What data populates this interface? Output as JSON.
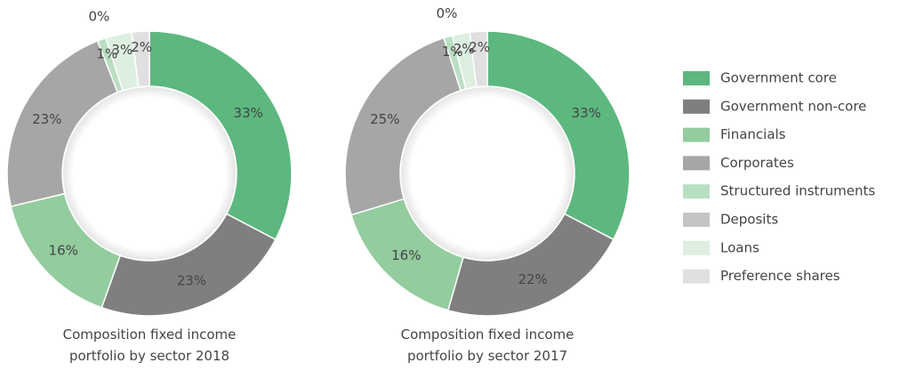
{
  "chart_data": [
    {
      "type": "pie",
      "title": "Composition fixed income portfolio by sector 2018",
      "categories": [
        "Government core",
        "Government non-core",
        "Financials",
        "Corporates",
        "Structured instruments",
        "Deposits",
        "Loans",
        "Preference shares"
      ],
      "values": [
        33,
        23,
        16,
        23,
        1,
        0,
        3,
        2
      ],
      "value_labels": [
        "33%",
        "23%",
        "16%",
        "23%",
        "1%",
        "0%",
        "3%",
        "2%"
      ],
      "colors": [
        "#5cb87f",
        "#7f7f7f",
        "#93cc9e",
        "#a6a6a6",
        "#b9dfc3",
        "#c4c4c4",
        "#dcefe0",
        "#e0e0e0"
      ]
    },
    {
      "type": "pie",
      "title": "Composition fixed income portfolio by sector 2017",
      "categories": [
        "Government core",
        "Government non-core",
        "Financials",
        "Corporates",
        "Structured instruments",
        "Deposits",
        "Loans",
        "Preference shares"
      ],
      "values": [
        33,
        22,
        16,
        25,
        1,
        0,
        2,
        2
      ],
      "value_labels": [
        "33%",
        "22%",
        "16%",
        "25%",
        "1%",
        "0%",
        "2%",
        "2%"
      ],
      "colors": [
        "#5cb87f",
        "#7f7f7f",
        "#93cc9e",
        "#a6a6a6",
        "#b9dfc3",
        "#c4c4c4",
        "#dcefe0",
        "#e0e0e0"
      ]
    }
  ]
}
